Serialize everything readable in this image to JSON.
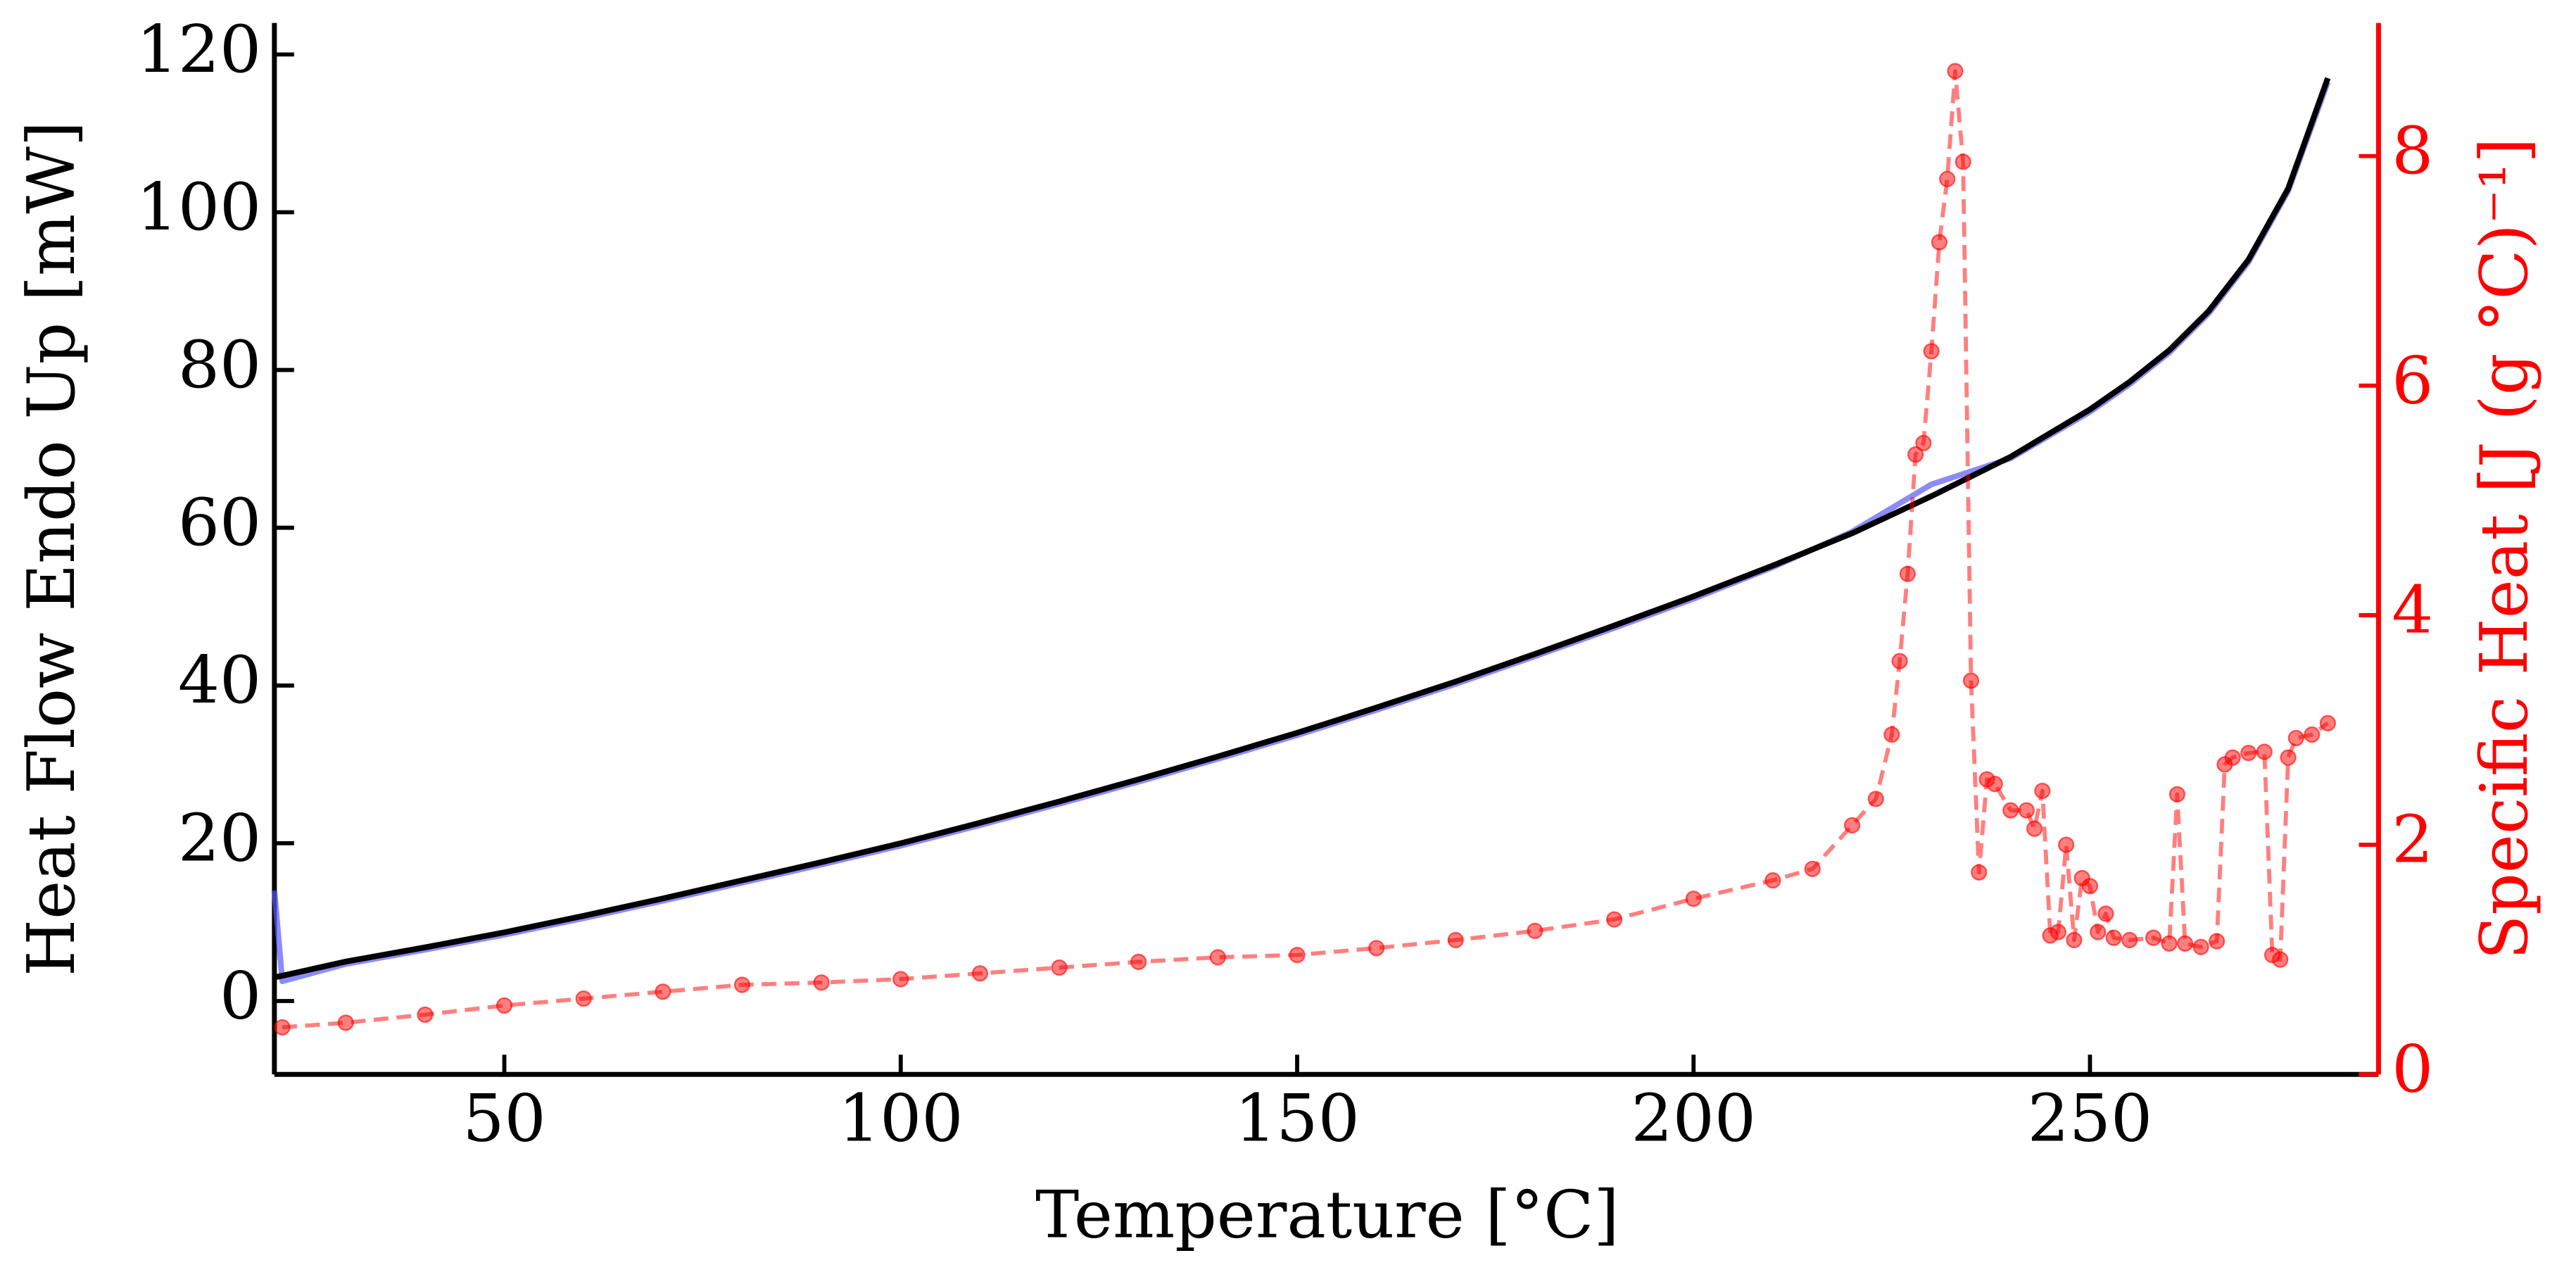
{
  "chart_data": {
    "type": "line",
    "xlabel": "Temperature [°C]",
    "ylabel": "Heat Flow Endo Up [mW]",
    "y2label": "Specific Heat [J (g °C)⁻¹]",
    "xlim": [
      21,
      286.4
    ],
    "ylim": [
      -9.3,
      124
    ],
    "y2lim": [
      0,
      9.16
    ],
    "xticks": [
      50,
      100,
      150,
      200,
      250
    ],
    "yticks": [
      0,
      20,
      40,
      60,
      80,
      100,
      120
    ],
    "y2ticks": [
      0,
      2,
      4,
      6,
      8
    ],
    "series": [
      {
        "color": "#5a5aff",
        "axis": "y",
        "x": [
          21,
          22,
          30,
          40,
          50,
          60,
          70,
          80,
          90,
          100,
          110,
          120,
          130,
          140,
          150,
          160,
          170,
          180,
          190,
          200,
          210,
          220,
          230,
          240,
          250,
          255,
          260,
          265,
          270,
          275,
          280
        ],
        "values": [
          14,
          2.5,
          4.7,
          6.5,
          8.4,
          10.5,
          12.7,
          15,
          17.3,
          19.7,
          22.3,
          25,
          27.8,
          30.7,
          33.7,
          36.9,
          40.2,
          43.7,
          47.3,
          51,
          55,
          59.5,
          65.5,
          68.8,
          74.7,
          78.2,
          82.2,
          87.2,
          93.7,
          102.7,
          116.5
        ]
      },
      {
        "color": "#000000",
        "axis": "y",
        "x": [
          21,
          22,
          30,
          40,
          50,
          60,
          70,
          80,
          90,
          100,
          110,
          120,
          130,
          140,
          150,
          160,
          170,
          180,
          190,
          200,
          210,
          220,
          230,
          240,
          250,
          255,
          260,
          265,
          270,
          275,
          280
        ],
        "values": [
          3,
          3.2,
          5,
          6.8,
          8.7,
          10.8,
          13,
          15.3,
          17.6,
          20,
          22.6,
          25.3,
          28.1,
          31,
          34,
          37.2,
          40.5,
          44,
          47.6,
          51.3,
          55.2,
          59.3,
          64,
          69,
          75,
          78.5,
          82.5,
          87.5,
          94,
          103,
          117
        ]
      },
      {
        "color": "#ff0000",
        "axis": "y2",
        "dashed": true,
        "markers": true,
        "x": [
          22,
          30,
          40,
          50,
          60,
          70,
          80,
          90,
          100,
          110,
          120,
          130,
          140,
          150,
          160,
          170,
          180,
          190,
          200,
          210,
          215,
          220,
          223,
          225,
          226,
          227,
          228,
          229,
          230,
          231,
          232,
          233,
          234,
          235,
          236,
          237,
          238,
          240,
          242,
          243,
          244,
          245,
          246,
          247,
          248,
          249,
          250,
          251,
          252,
          253,
          255,
          258,
          260,
          261,
          262,
          264,
          266,
          267,
          268,
          270,
          272,
          273,
          274,
          275,
          276,
          278,
          280
        ],
        "values": [
          0.41,
          0.45,
          0.52,
          0.6,
          0.66,
          0.72,
          0.78,
          0.8,
          0.83,
          0.88,
          0.93,
          0.98,
          1.02,
          1.04,
          1.1,
          1.17,
          1.25,
          1.35,
          1.53,
          1.69,
          1.79,
          2.17,
          2.4,
          2.96,
          3.6,
          4.36,
          5.4,
          5.5,
          6.3,
          7.25,
          7.8,
          8.74,
          7.95,
          3.43,
          1.76,
          2.57,
          2.53,
          2.3,
          2.3,
          2.14,
          2.47,
          1.21,
          1.24,
          2.0,
          1.17,
          1.71,
          1.64,
          1.24,
          1.4,
          1.19,
          1.17,
          1.19,
          1.14,
          2.44,
          1.14,
          1.11,
          1.16,
          2.7,
          2.76,
          2.8,
          2.81,
          1.04,
          1.0,
          2.76,
          2.93,
          2.96,
          3.06
        ]
      }
    ],
    "y2color": "#ff0000"
  }
}
